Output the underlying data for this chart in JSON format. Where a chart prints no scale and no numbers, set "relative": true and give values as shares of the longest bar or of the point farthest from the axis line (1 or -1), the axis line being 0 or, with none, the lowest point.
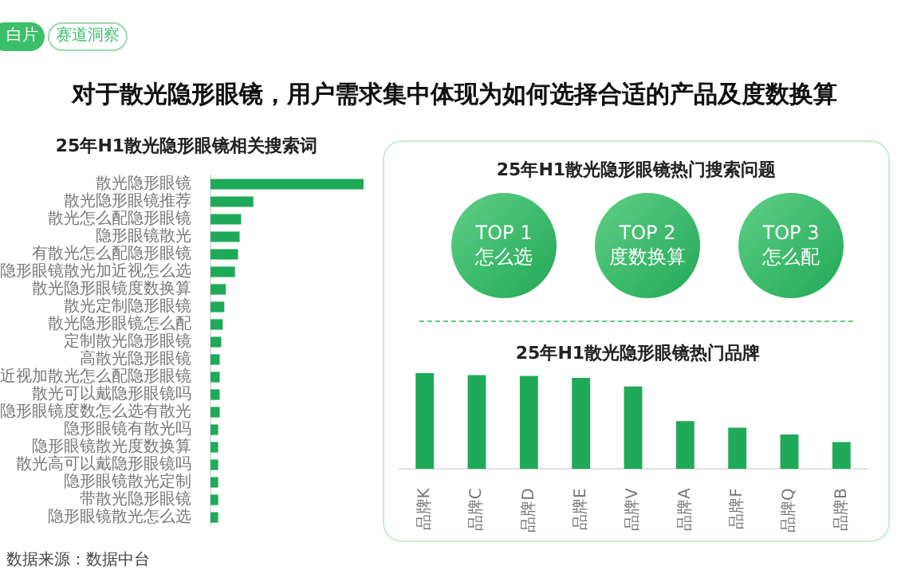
{
  "chart_data": [
    {
      "type": "other",
      "title": "对于散光隐形眼镜，用户需求集中体现为如何选择合适的产品及度数换算",
      "annotations": [
        "白片",
        "赛道洞察",
        "数据来源：数据中台"
      ]
    },
    {
      "type": "bar",
      "orientation": "horizontal",
      "relative": true,
      "title": "25年H1散光隐形眼镜相关搜索词",
      "color": "#1faa59",
      "categories": [
        "散光隐形眼镜",
        "散光隐形眼镜推荐",
        "散光怎么配隐形眼镜",
        "隐形眼镜散光",
        "有散光怎么配隐形眼镜",
        "隐形眼镜散光加近视怎么选",
        "散光隐形眼镜度数换算",
        "散光定制隐形眼镜",
        "散光隐形眼镜怎么配",
        "定制散光隐形眼镜",
        "高散光隐形眼镜",
        "近视加散光怎么配隐形眼镜",
        "散光可以戴隐形眼镜吗",
        "隐形眼镜度数怎么选有散光",
        "隐形眼镜有散光吗",
        "隐形眼镜散光度数换算",
        "散光高可以戴隐形眼镜吗",
        "隐形眼镜散光定制",
        "带散光隐形眼镜",
        "隐形眼镜散光怎么选"
      ],
      "values": [
        1,
        0.28,
        0.2,
        0.19,
        0.18,
        0.16,
        0.1,
        0.09,
        0.08,
        0.07,
        0.06,
        0.06,
        0.06,
        0.06,
        0.05,
        0.05,
        0.05,
        0.05,
        0.05,
        0.05
      ]
    },
    {
      "type": "other",
      "title": "25年H1散光隐形眼镜热门搜索问题",
      "annotations": [
        "TOP 1\n怎么选",
        "TOP 2\n度数换算",
        "TOP 3\n怎么配"
      ]
    },
    {
      "type": "bar",
      "relative": true,
      "title": "25年H1散光隐形眼镜热门品牌",
      "color": "#1faa59",
      "categories": [
        "品牌K",
        "品牌C",
        "品牌D",
        "品牌E",
        "品牌V",
        "品牌A",
        "品牌F",
        "品牌Q",
        "品牌B"
      ],
      "values": [
        1,
        0.98,
        0.97,
        0.95,
        0.86,
        0.5,
        0.43,
        0.36,
        0.28
      ]
    }
  ]
}
